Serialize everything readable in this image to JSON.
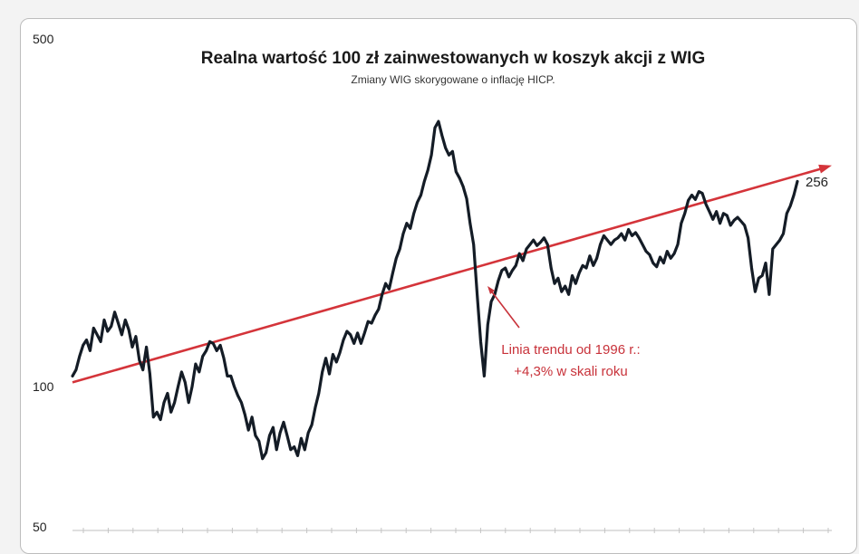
{
  "chart_data": {
    "type": "line",
    "title": "Realna wartość 100 zł zainwestowanych w koszyk akcji z WIG",
    "subtitle": "Zmiany WIG skorygowane o inflację HICP.",
    "y_scale": "log",
    "ylim": [
      50,
      500
    ],
    "y_ticks": [
      "500",
      "100",
      "50"
    ],
    "grid": false,
    "series": [
      {
        "values": [
          102,
          105,
          112,
          118,
          121,
          115,
          128,
          124,
          120,
          133,
          126,
          129,
          138,
          131,
          124,
          133,
          127,
          117,
          123,
          110,
          105,
          117,
          103,
          84,
          86,
          83,
          90,
          94,
          86,
          90,
          97,
          104,
          99,
          90,
          97,
          108,
          104,
          112,
          115,
          120,
          119,
          115,
          118,
          111,
          102,
          102,
          97,
          93,
          90,
          85,
          79,
          84,
          77,
          75,
          69,
          71,
          77,
          80,
          72,
          78,
          82,
          77,
          72,
          73,
          70,
          76,
          72,
          78,
          81,
          88,
          94,
          104,
          111,
          103,
          113,
          109,
          114,
          121,
          126,
          124,
          119,
          125,
          119,
          125,
          132,
          131,
          136,
          140,
          150,
          158,
          154,
          166,
          178,
          186,
          200,
          210,
          205,
          220,
          232,
          240,
          256,
          270,
          290,
          330,
          340,
          318,
          300,
          290,
          295,
          268,
          260,
          250,
          236,
          210,
          190,
          150,
          120,
          102,
          130,
          145,
          150,
          160,
          168,
          170,
          163,
          168,
          172,
          182,
          176,
          186,
          190,
          194,
          189,
          192,
          196,
          190,
          170,
          158,
          162,
          152,
          156,
          150,
          164,
          158,
          166,
          172,
          170,
          180,
          172,
          178,
          190,
          198,
          194,
          190,
          194,
          196,
          200,
          194,
          204,
          198,
          201,
          196,
          190,
          184,
          181,
          174,
          171,
          179,
          174,
          184,
          178,
          182,
          190,
          210,
          220,
          234,
          240,
          235,
          244,
          242,
          230,
          222,
          214,
          222,
          210,
          220,
          218,
          208,
          213,
          216,
          212,
          208,
          196,
          170,
          152,
          162,
          164,
          174,
          150,
          186,
          190,
          194,
          200,
          220,
          228,
          240,
          256
        ]
      }
    ],
    "trend_line": {
      "start_value": 99,
      "end_value": 276
    },
    "end_value_label": "256",
    "annotation": {
      "line1": "Linia trendu od 1996 r.:",
      "line2": "+4,3% w skali roku"
    },
    "colors": {
      "series": "#141c26",
      "trend": "#d4343a",
      "annotation": "#c8323a"
    }
  }
}
